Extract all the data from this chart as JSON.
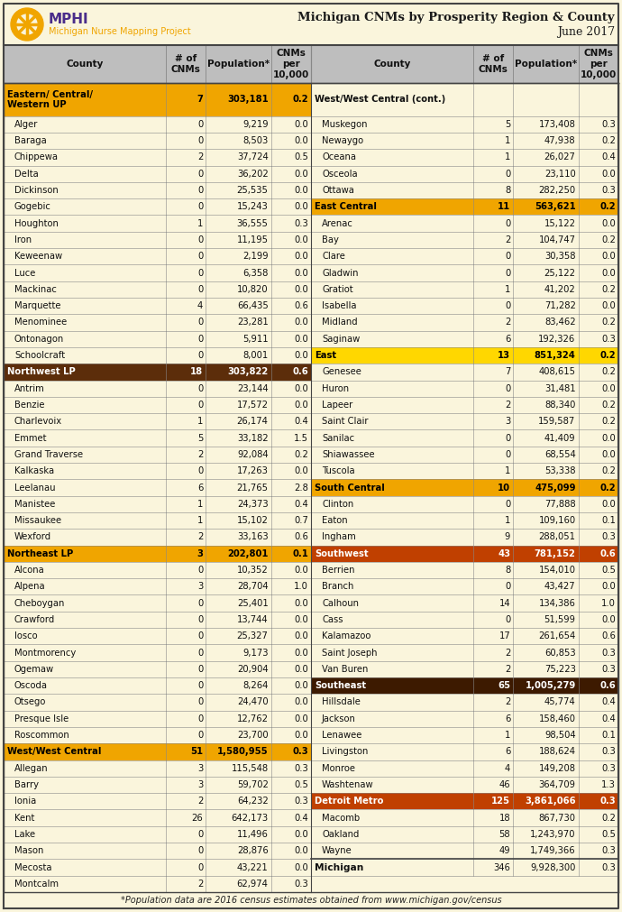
{
  "title_line1": "Michigan CNMs by Prosperity Region & County",
  "title_line2": "June 2017",
  "footnote": "*Population data are 2016 census estimates obtained from www.michigan.gov/census",
  "left_col": [
    {
      "type": "region2",
      "name": "Eastern/ Central/\nWestern UP",
      "cnms": "7",
      "pop": "303,181",
      "rate": "0.2",
      "color": "#F0A500",
      "fg": "#000000"
    },
    {
      "type": "county",
      "name": "Alger",
      "cnms": "0",
      "pop": "9,219",
      "rate": "0.0"
    },
    {
      "type": "county",
      "name": "Baraga",
      "cnms": "0",
      "pop": "8,503",
      "rate": "0.0"
    },
    {
      "type": "county",
      "name": "Chippewa",
      "cnms": "2",
      "pop": "37,724",
      "rate": "0.5"
    },
    {
      "type": "county",
      "name": "Delta",
      "cnms": "0",
      "pop": "36,202",
      "rate": "0.0"
    },
    {
      "type": "county",
      "name": "Dickinson",
      "cnms": "0",
      "pop": "25,535",
      "rate": "0.0"
    },
    {
      "type": "county",
      "name": "Gogebic",
      "cnms": "0",
      "pop": "15,243",
      "rate": "0.0"
    },
    {
      "type": "county",
      "name": "Houghton",
      "cnms": "1",
      "pop": "36,555",
      "rate": "0.3"
    },
    {
      "type": "county",
      "name": "Iron",
      "cnms": "0",
      "pop": "11,195",
      "rate": "0.0"
    },
    {
      "type": "county",
      "name": "Keweenaw",
      "cnms": "0",
      "pop": "2,199",
      "rate": "0.0"
    },
    {
      "type": "county",
      "name": "Luce",
      "cnms": "0",
      "pop": "6,358",
      "rate": "0.0"
    },
    {
      "type": "county",
      "name": "Mackinac",
      "cnms": "0",
      "pop": "10,820",
      "rate": "0.0"
    },
    {
      "type": "county",
      "name": "Marquette",
      "cnms": "4",
      "pop": "66,435",
      "rate": "0.6"
    },
    {
      "type": "county",
      "name": "Menominee",
      "cnms": "0",
      "pop": "23,281",
      "rate": "0.0"
    },
    {
      "type": "county",
      "name": "Ontonagon",
      "cnms": "0",
      "pop": "5,911",
      "rate": "0.0"
    },
    {
      "type": "county",
      "name": "Schoolcraft",
      "cnms": "0",
      "pop": "8,001",
      "rate": "0.0"
    },
    {
      "type": "region1",
      "name": "Northwest LP",
      "cnms": "18",
      "pop": "303,822",
      "rate": "0.6",
      "color": "#5C2D0A",
      "fg": "#FFFFFF"
    },
    {
      "type": "county",
      "name": "Antrim",
      "cnms": "0",
      "pop": "23,144",
      "rate": "0.0"
    },
    {
      "type": "county",
      "name": "Benzie",
      "cnms": "0",
      "pop": "17,572",
      "rate": "0.0"
    },
    {
      "type": "county",
      "name": "Charlevoix",
      "cnms": "1",
      "pop": "26,174",
      "rate": "0.4"
    },
    {
      "type": "county",
      "name": "Emmet",
      "cnms": "5",
      "pop": "33,182",
      "rate": "1.5"
    },
    {
      "type": "county",
      "name": "Grand Traverse",
      "cnms": "2",
      "pop": "92,084",
      "rate": "0.2"
    },
    {
      "type": "county",
      "name": "Kalkaska",
      "cnms": "0",
      "pop": "17,263",
      "rate": "0.0"
    },
    {
      "type": "county",
      "name": "Leelanau",
      "cnms": "6",
      "pop": "21,765",
      "rate": "2.8"
    },
    {
      "type": "county",
      "name": "Manistee",
      "cnms": "1",
      "pop": "24,373",
      "rate": "0.4"
    },
    {
      "type": "county",
      "name": "Missaukee",
      "cnms": "1",
      "pop": "15,102",
      "rate": "0.7"
    },
    {
      "type": "county",
      "name": "Wexford",
      "cnms": "2",
      "pop": "33,163",
      "rate": "0.6"
    },
    {
      "type": "region1",
      "name": "Northeast LP",
      "cnms": "3",
      "pop": "202,801",
      "rate": "0.1",
      "color": "#F0A500",
      "fg": "#000000"
    },
    {
      "type": "county",
      "name": "Alcona",
      "cnms": "0",
      "pop": "10,352",
      "rate": "0.0"
    },
    {
      "type": "county",
      "name": "Alpena",
      "cnms": "3",
      "pop": "28,704",
      "rate": "1.0"
    },
    {
      "type": "county",
      "name": "Cheboygan",
      "cnms": "0",
      "pop": "25,401",
      "rate": "0.0"
    },
    {
      "type": "county",
      "name": "Crawford",
      "cnms": "0",
      "pop": "13,744",
      "rate": "0.0"
    },
    {
      "type": "county",
      "name": "Iosco",
      "cnms": "0",
      "pop": "25,327",
      "rate": "0.0"
    },
    {
      "type": "county",
      "name": "Montmorency",
      "cnms": "0",
      "pop": "9,173",
      "rate": "0.0"
    },
    {
      "type": "county",
      "name": "Ogemaw",
      "cnms": "0",
      "pop": "20,904",
      "rate": "0.0"
    },
    {
      "type": "county",
      "name": "Oscoda",
      "cnms": "0",
      "pop": "8,264",
      "rate": "0.0"
    },
    {
      "type": "county",
      "name": "Otsego",
      "cnms": "0",
      "pop": "24,470",
      "rate": "0.0"
    },
    {
      "type": "county",
      "name": "Presque Isle",
      "cnms": "0",
      "pop": "12,762",
      "rate": "0.0"
    },
    {
      "type": "county",
      "name": "Roscommon",
      "cnms": "0",
      "pop": "23,700",
      "rate": "0.0"
    },
    {
      "type": "region1",
      "name": "West/West Central",
      "cnms": "51",
      "pop": "1,580,955",
      "rate": "0.3",
      "color": "#F0A500",
      "fg": "#000000"
    },
    {
      "type": "county",
      "name": "Allegan",
      "cnms": "3",
      "pop": "115,548",
      "rate": "0.3"
    },
    {
      "type": "county",
      "name": "Barry",
      "cnms": "3",
      "pop": "59,702",
      "rate": "0.5"
    },
    {
      "type": "county",
      "name": "Ionia",
      "cnms": "2",
      "pop": "64,232",
      "rate": "0.3"
    },
    {
      "type": "county",
      "name": "Kent",
      "cnms": "26",
      "pop": "642,173",
      "rate": "0.4"
    },
    {
      "type": "county",
      "name": "Lake",
      "cnms": "0",
      "pop": "11,496",
      "rate": "0.0"
    },
    {
      "type": "county",
      "name": "Mason",
      "cnms": "0",
      "pop": "28,876",
      "rate": "0.0"
    },
    {
      "type": "county",
      "name": "Mecosta",
      "cnms": "0",
      "pop": "43,221",
      "rate": "0.0"
    },
    {
      "type": "county",
      "name": "Montcalm",
      "cnms": "2",
      "pop": "62,974",
      "rate": "0.3"
    }
  ],
  "right_col": [
    {
      "type": "cont2",
      "name": "West/West Central (cont.)",
      "cnms": "",
      "pop": "",
      "rate": ""
    },
    {
      "type": "county",
      "name": "Muskegon",
      "cnms": "5",
      "pop": "173,408",
      "rate": "0.3"
    },
    {
      "type": "county",
      "name": "Newaygo",
      "cnms": "1",
      "pop": "47,938",
      "rate": "0.2"
    },
    {
      "type": "county",
      "name": "Oceana",
      "cnms": "1",
      "pop": "26,027",
      "rate": "0.4"
    },
    {
      "type": "county",
      "name": "Osceola",
      "cnms": "0",
      "pop": "23,110",
      "rate": "0.0"
    },
    {
      "type": "county",
      "name": "Ottawa",
      "cnms": "8",
      "pop": "282,250",
      "rate": "0.3"
    },
    {
      "type": "region1",
      "name": "East Central",
      "cnms": "11",
      "pop": "563,621",
      "rate": "0.2",
      "color": "#F0A500",
      "fg": "#000000"
    },
    {
      "type": "county",
      "name": "Arenac",
      "cnms": "0",
      "pop": "15,122",
      "rate": "0.0"
    },
    {
      "type": "county",
      "name": "Bay",
      "cnms": "2",
      "pop": "104,747",
      "rate": "0.2"
    },
    {
      "type": "county",
      "name": "Clare",
      "cnms": "0",
      "pop": "30,358",
      "rate": "0.0"
    },
    {
      "type": "county",
      "name": "Gladwin",
      "cnms": "0",
      "pop": "25,122",
      "rate": "0.0"
    },
    {
      "type": "county",
      "name": "Gratiot",
      "cnms": "1",
      "pop": "41,202",
      "rate": "0.2"
    },
    {
      "type": "county",
      "name": "Isabella",
      "cnms": "0",
      "pop": "71,282",
      "rate": "0.0"
    },
    {
      "type": "county",
      "name": "Midland",
      "cnms": "2",
      "pop": "83,462",
      "rate": "0.2"
    },
    {
      "type": "county",
      "name": "Saginaw",
      "cnms": "6",
      "pop": "192,326",
      "rate": "0.3"
    },
    {
      "type": "region1",
      "name": "East",
      "cnms": "13",
      "pop": "851,324",
      "rate": "0.2",
      "color": "#FFD700",
      "fg": "#000000"
    },
    {
      "type": "county",
      "name": "Genesee",
      "cnms": "7",
      "pop": "408,615",
      "rate": "0.2"
    },
    {
      "type": "county",
      "name": "Huron",
      "cnms": "0",
      "pop": "31,481",
      "rate": "0.0"
    },
    {
      "type": "county",
      "name": "Lapeer",
      "cnms": "2",
      "pop": "88,340",
      "rate": "0.2"
    },
    {
      "type": "county",
      "name": "Saint Clair",
      "cnms": "3",
      "pop": "159,587",
      "rate": "0.2"
    },
    {
      "type": "county",
      "name": "Sanilac",
      "cnms": "0",
      "pop": "41,409",
      "rate": "0.0"
    },
    {
      "type": "county",
      "name": "Shiawassee",
      "cnms": "0",
      "pop": "68,554",
      "rate": "0.0"
    },
    {
      "type": "county",
      "name": "Tuscola",
      "cnms": "1",
      "pop": "53,338",
      "rate": "0.2"
    },
    {
      "type": "region1",
      "name": "South Central",
      "cnms": "10",
      "pop": "475,099",
      "rate": "0.2",
      "color": "#F0A500",
      "fg": "#000000"
    },
    {
      "type": "county",
      "name": "Clinton",
      "cnms": "0",
      "pop": "77,888",
      "rate": "0.0"
    },
    {
      "type": "county",
      "name": "Eaton",
      "cnms": "1",
      "pop": "109,160",
      "rate": "0.1"
    },
    {
      "type": "county",
      "name": "Ingham",
      "cnms": "9",
      "pop": "288,051",
      "rate": "0.3"
    },
    {
      "type": "region1",
      "name": "Southwest",
      "cnms": "43",
      "pop": "781,152",
      "rate": "0.6",
      "color": "#C04000",
      "fg": "#FFFFFF"
    },
    {
      "type": "county",
      "name": "Berrien",
      "cnms": "8",
      "pop": "154,010",
      "rate": "0.5"
    },
    {
      "type": "county",
      "name": "Branch",
      "cnms": "0",
      "pop": "43,427",
      "rate": "0.0"
    },
    {
      "type": "county",
      "name": "Calhoun",
      "cnms": "14",
      "pop": "134,386",
      "rate": "1.0"
    },
    {
      "type": "county",
      "name": "Cass",
      "cnms": "0",
      "pop": "51,599",
      "rate": "0.0"
    },
    {
      "type": "county",
      "name": "Kalamazoo",
      "cnms": "17",
      "pop": "261,654",
      "rate": "0.6"
    },
    {
      "type": "county",
      "name": "Saint Joseph",
      "cnms": "2",
      "pop": "60,853",
      "rate": "0.3"
    },
    {
      "type": "county",
      "name": "Van Buren",
      "cnms": "2",
      "pop": "75,223",
      "rate": "0.3"
    },
    {
      "type": "region1",
      "name": "Southeast",
      "cnms": "65",
      "pop": "1,005,279",
      "rate": "0.6",
      "color": "#3D1A00",
      "fg": "#FFFFFF"
    },
    {
      "type": "county",
      "name": "Hillsdale",
      "cnms": "2",
      "pop": "45,774",
      "rate": "0.4"
    },
    {
      "type": "county",
      "name": "Jackson",
      "cnms": "6",
      "pop": "158,460",
      "rate": "0.4"
    },
    {
      "type": "county",
      "name": "Lenawee",
      "cnms": "1",
      "pop": "98,504",
      "rate": "0.1"
    },
    {
      "type": "county",
      "name": "Livingston",
      "cnms": "6",
      "pop": "188,624",
      "rate": "0.3"
    },
    {
      "type": "county",
      "name": "Monroe",
      "cnms": "4",
      "pop": "149,208",
      "rate": "0.3"
    },
    {
      "type": "county",
      "name": "Washtenaw",
      "cnms": "46",
      "pop": "364,709",
      "rate": "1.3"
    },
    {
      "type": "region1",
      "name": "Detroit Metro",
      "cnms": "125",
      "pop": "3,861,066",
      "rate": "0.3",
      "color": "#C04000",
      "fg": "#FFFFFF"
    },
    {
      "type": "county",
      "name": "Macomb",
      "cnms": "18",
      "pop": "867,730",
      "rate": "0.2"
    },
    {
      "type": "county",
      "name": "Oakland",
      "cnms": "58",
      "pop": "1,243,970",
      "rate": "0.5"
    },
    {
      "type": "county",
      "name": "Wayne",
      "cnms": "49",
      "pop": "1,749,366",
      "rate": "0.3"
    },
    {
      "type": "total",
      "name": "Michigan",
      "cnms": "346",
      "pop": "9,928,300",
      "rate": "0.3"
    }
  ],
  "bg_color": "#FAF5DC",
  "header_bg": "#BEBEBE",
  "border_color": "#444444",
  "grid_color": "#888888",
  "county_bg": "#FAF5DC",
  "total_bg": "#FAF5DC"
}
